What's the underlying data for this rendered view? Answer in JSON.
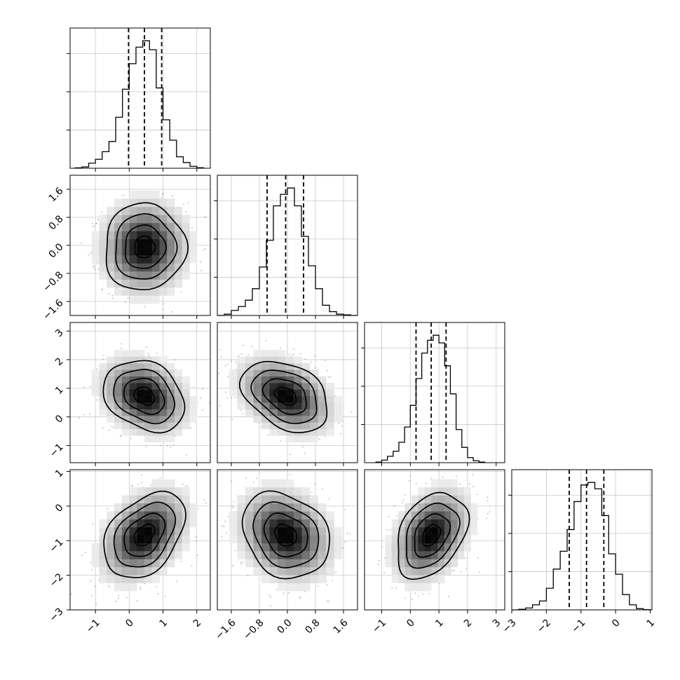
{
  "chart_data": {
    "type": "corner",
    "title": "",
    "n_params": 4,
    "params": [
      {
        "index": 0,
        "label": "",
        "range": [
          -1.75,
          2.4
        ],
        "ticks": [
          -1,
          0,
          1,
          2
        ],
        "tick_labels": [
          "−1",
          "0",
          "1",
          "2"
        ],
        "quantiles": [
          -0.02,
          0.45,
          0.96
        ],
        "hist_bins": [
          -1.6,
          -1.4,
          -1.2,
          -1.0,
          -0.8,
          -0.6,
          -0.4,
          -0.2,
          0.0,
          0.2,
          0.4,
          0.6,
          0.8,
          1.0,
          1.2,
          1.4,
          1.6,
          1.8,
          2.0,
          2.2
        ],
        "hist_counts": [
          0.003,
          0.01,
          0.04,
          0.07,
          0.13,
          0.21,
          0.4,
          0.62,
          0.82,
          0.95,
          1.0,
          0.93,
          0.63,
          0.38,
          0.22,
          0.09,
          0.045,
          0.015,
          0.004
        ]
      },
      {
        "index": 1,
        "label": "",
        "range": [
          -2.0,
          2.0
        ],
        "ticks": [
          -1.6,
          -0.8,
          0.0,
          0.8,
          1.6
        ],
        "tick_labels": [
          "−1.6",
          "−0.8",
          "0.0",
          "0.8",
          "1.6"
        ],
        "quantiles": [
          -0.58,
          -0.05,
          0.46
        ],
        "hist_bins": [
          -2.0,
          -1.8,
          -1.6,
          -1.4,
          -1.2,
          -1.0,
          -0.8,
          -0.6,
          -0.4,
          -0.2,
          0.0,
          0.2,
          0.4,
          0.6,
          0.8,
          1.0,
          1.2,
          1.4,
          1.6,
          1.8,
          2.0
        ],
        "hist_counts": [
          0.0,
          0.01,
          0.04,
          0.07,
          0.12,
          0.21,
          0.38,
          0.59,
          0.86,
          0.95,
          1.0,
          0.86,
          0.62,
          0.39,
          0.21,
          0.08,
          0.03,
          0.01,
          0.005,
          0.0
        ]
      },
      {
        "index": 2,
        "label": "",
        "range": [
          -1.6,
          3.3
        ],
        "ticks": [
          -1,
          0,
          1,
          2,
          3
        ],
        "tick_labels": [
          "−1",
          "0",
          "1",
          "2",
          "3"
        ],
        "quantiles": [
          0.2,
          0.73,
          1.25
        ],
        "hist_bins": [
          -1.2,
          -1.0,
          -0.8,
          -0.6,
          -0.4,
          -0.2,
          0.0,
          0.2,
          0.4,
          0.6,
          0.8,
          1.0,
          1.2,
          1.4,
          1.6,
          1.8,
          2.0,
          2.2,
          2.4,
          2.6
        ],
        "hist_counts": [
          0.005,
          0.02,
          0.05,
          0.09,
          0.16,
          0.28,
          0.45,
          0.66,
          0.86,
          0.96,
          1.0,
          0.94,
          0.76,
          0.54,
          0.26,
          0.12,
          0.04,
          0.015,
          0.005
        ]
      },
      {
        "index": 3,
        "label": "",
        "range": [
          -3.0,
          1.05
        ],
        "ticks": [
          -3,
          -2,
          -1,
          0,
          1
        ],
        "tick_labels": [
          "−3",
          "−2",
          "−1",
          "0",
          "1"
        ],
        "quantiles": [
          -1.34,
          -0.84,
          -0.34
        ],
        "hist_bins": [
          -3.0,
          -2.8,
          -2.6,
          -2.4,
          -2.2,
          -2.0,
          -1.8,
          -1.6,
          -1.4,
          -1.2,
          -1.0,
          -0.8,
          -0.6,
          -0.4,
          -0.2,
          0.0,
          0.2,
          0.4,
          0.6,
          0.8,
          1.0
        ],
        "hist_counts": [
          0.0,
          0.005,
          0.015,
          0.04,
          0.07,
          0.17,
          0.32,
          0.46,
          0.63,
          0.85,
          0.98,
          1.0,
          0.95,
          0.74,
          0.44,
          0.28,
          0.12,
          0.04,
          0.01,
          0.002
        ]
      }
    ],
    "pairs": [
      {
        "x": 0,
        "y": 1,
        "mean": [
          0.45,
          -0.05
        ],
        "sd": [
          0.6,
          0.62
        ],
        "corr": 0.02
      },
      {
        "x": 0,
        "y": 2,
        "mean": [
          0.45,
          0.73
        ],
        "sd": [
          0.6,
          0.62
        ],
        "corr": -0.25
      },
      {
        "x": 1,
        "y": 2,
        "mean": [
          -0.05,
          0.73
        ],
        "sd": [
          0.62,
          0.62
        ],
        "corr": -0.35
      },
      {
        "x": 0,
        "y": 3,
        "mean": [
          0.45,
          -0.84
        ],
        "sd": [
          0.6,
          0.62
        ],
        "corr": 0.38
      },
      {
        "x": 1,
        "y": 3,
        "mean": [
          -0.05,
          -0.84
        ],
        "sd": [
          0.62,
          0.62
        ],
        "corr": -0.22
      },
      {
        "x": 2,
        "y": 3,
        "mean": [
          0.73,
          -0.84
        ],
        "sd": [
          0.62,
          0.62
        ],
        "corr": 0.35
      }
    ],
    "contour_levels_sigma": [
      0.5,
      1.0,
      1.5,
      2.0
    ],
    "grid": true,
    "colors": {
      "ink": "#000000",
      "grid": "#c8c8c8",
      "scatter": "#7a7a7a"
    }
  }
}
